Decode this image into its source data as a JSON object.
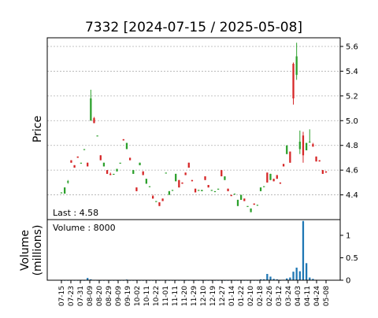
{
  "chart_data": {
    "type": "candlestick",
    "title": "7332   [2024-07-15 / 2025-05-08]",
    "colors": {
      "up": "#2ca02c",
      "down": "#d62728",
      "volume": "#1f77b4",
      "grid": "#b0b0b0"
    },
    "price_panel": {
      "ylabel": "Price",
      "ylim": [
        4.2,
        5.67
      ],
      "yticks": [
        "4.4",
        "4.6",
        "4.8",
        "5.0",
        "5.2",
        "5.4",
        "5.6"
      ],
      "grid": true,
      "annotation": "Last : 4.58"
    },
    "volume_panel": {
      "ylabel": "Volume\n(millions)",
      "ylim": [
        0,
        1.35
      ],
      "yticks": [
        "0",
        "0.5",
        "1"
      ],
      "grid": false,
      "annotation": "Volume : 8000"
    },
    "x_ticks": [
      "07-15",
      "07-23",
      "07-31",
      "08-09",
      "08-20",
      "08-29",
      "09-09",
      "09-19",
      "10-02",
      "10-11",
      "10-22",
      "11-01",
      "11-11",
      "11-20",
      "11-29",
      "12-10",
      "12-19",
      "12-27",
      "01-14",
      "01-22",
      "02-10",
      "02-18",
      "02-26",
      "03-12",
      "03-24",
      "04-03",
      "04-11",
      "04-24",
      "05-08"
    ],
    "candles": [
      [
        4.42,
        4.42,
        4.42,
        4.42
      ],
      [
        4.41,
        4.46,
        4.41,
        4.46
      ],
      [
        4.5,
        4.52,
        4.49,
        4.51
      ],
      [
        4.68,
        4.68,
        4.66,
        4.66
      ],
      [
        4.64,
        4.64,
        4.62,
        4.62
      ],
      [
        4.71,
        4.71,
        4.7,
        4.7
      ],
      [
        4.66,
        4.66,
        4.66,
        4.66
      ],
      [
        4.77,
        4.77,
        4.77,
        4.77
      ],
      [
        4.66,
        4.66,
        4.63,
        4.63
      ],
      [
        5.0,
        5.25,
        5.0,
        5.18
      ],
      [
        5.02,
        5.03,
        4.98,
        4.98
      ],
      [
        4.88,
        4.88,
        4.88,
        4.88
      ],
      [
        4.72,
        4.72,
        4.68,
        4.68
      ],
      [
        4.63,
        4.66,
        4.63,
        4.66
      ],
      [
        4.6,
        4.6,
        4.57,
        4.57
      ],
      [
        4.57,
        4.58,
        4.56,
        4.56
      ],
      [
        4.57,
        4.57,
        4.57,
        4.57
      ],
      [
        4.59,
        4.61,
        4.59,
        4.61
      ],
      [
        4.66,
        4.66,
        4.66,
        4.66
      ],
      [
        4.85,
        4.85,
        4.84,
        4.84
      ],
      [
        4.77,
        4.82,
        4.77,
        4.82
      ],
      [
        4.7,
        4.7,
        4.68,
        4.68
      ],
      [
        4.57,
        4.6,
        4.57,
        4.6
      ],
      [
        4.46,
        4.46,
        4.43,
        4.43
      ],
      [
        4.64,
        4.66,
        4.64,
        4.66
      ],
      [
        4.59,
        4.59,
        4.56,
        4.56
      ],
      [
        4.49,
        4.53,
        4.49,
        4.53
      ],
      [
        4.47,
        4.47,
        4.47,
        4.47
      ],
      [
        4.39,
        4.4,
        4.37,
        4.37
      ],
      [
        4.35,
        4.35,
        4.35,
        4.35
      ],
      [
        4.34,
        4.34,
        4.31,
        4.31
      ],
      [
        4.37,
        4.37,
        4.35,
        4.35
      ],
      [
        4.58,
        4.58,
        4.58,
        4.58
      ],
      [
        4.4,
        4.43,
        4.4,
        4.43
      ],
      [
        4.44,
        4.44,
        4.44,
        4.44
      ],
      [
        4.51,
        4.57,
        4.51,
        4.57
      ],
      [
        4.52,
        4.52,
        4.46,
        4.46
      ],
      [
        4.5,
        4.5,
        4.49,
        4.49
      ],
      [
        4.58,
        4.58,
        4.56,
        4.56
      ],
      [
        4.66,
        4.66,
        4.62,
        4.62
      ],
      [
        4.52,
        4.52,
        4.51,
        4.51
      ],
      [
        4.45,
        4.45,
        4.42,
        4.42
      ],
      [
        4.44,
        4.44,
        4.44,
        4.44
      ],
      [
        4.43,
        4.44,
        4.43,
        4.44
      ],
      [
        4.55,
        4.55,
        4.52,
        4.52
      ],
      [
        4.48,
        4.48,
        4.46,
        4.46
      ],
      [
        4.44,
        4.44,
        4.44,
        4.44
      ],
      [
        4.43,
        4.43,
        4.43,
        4.43
      ],
      [
        4.45,
        4.45,
        4.45,
        4.45
      ],
      [
        4.6,
        4.6,
        4.55,
        4.55
      ],
      [
        4.52,
        4.55,
        4.52,
        4.55
      ],
      [
        4.45,
        4.45,
        4.43,
        4.43
      ],
      [
        4.4,
        4.4,
        4.39,
        4.39
      ],
      [
        4.41,
        4.41,
        4.41,
        4.41
      ],
      [
        4.31,
        4.36,
        4.31,
        4.36
      ],
      [
        4.36,
        4.4,
        4.36,
        4.4
      ],
      [
        4.37,
        4.37,
        4.35,
        4.35
      ],
      [
        4.31,
        4.31,
        4.31,
        4.31
      ],
      [
        4.26,
        4.29,
        4.26,
        4.29
      ],
      [
        4.33,
        4.33,
        4.32,
        4.32
      ],
      [
        4.32,
        4.32,
        4.32,
        4.32
      ],
      [
        4.43,
        4.46,
        4.43,
        4.46
      ],
      [
        4.47,
        4.47,
        4.47,
        4.47
      ],
      [
        4.58,
        4.58,
        4.5,
        4.5
      ],
      [
        4.52,
        4.57,
        4.52,
        4.57
      ],
      [
        4.53,
        4.53,
        4.51,
        4.51
      ],
      [
        4.56,
        4.56,
        4.53,
        4.53
      ],
      [
        4.5,
        4.5,
        4.49,
        4.49
      ],
      [
        4.65,
        4.65,
        4.63,
        4.63
      ],
      [
        4.73,
        4.8,
        4.73,
        4.8
      ],
      [
        4.75,
        4.75,
        4.66,
        4.66
      ],
      [
        5.46,
        5.47,
        5.13,
        5.18
      ],
      [
        5.37,
        5.63,
        5.33,
        5.52
      ],
      [
        4.77,
        4.92,
        4.73,
        4.83
      ],
      [
        4.88,
        4.91,
        4.66,
        4.72
      ],
      [
        4.76,
        4.82,
        4.76,
        4.82
      ],
      [
        4.83,
        4.93,
        4.83,
        4.83
      ],
      [
        4.81,
        4.82,
        4.79,
        4.79
      ],
      [
        4.71,
        4.71,
        4.67,
        4.67
      ],
      [
        4.68,
        4.68,
        4.67,
        4.67
      ],
      [
        4.6,
        4.6,
        4.57,
        4.57
      ],
      [
        4.59,
        4.59,
        4.58,
        4.58
      ]
    ],
    "volume": [
      0.002,
      0.002,
      0.002,
      0.004,
      0.002,
      0.002,
      0.002,
      0.002,
      0.05,
      0.02,
      0.004,
      0.002,
      0.002,
      0.002,
      0.003,
      0.002,
      0.002,
      0.002,
      0.002,
      0.002,
      0.015,
      0.002,
      0.002,
      0.002,
      0.002,
      0.002,
      0.002,
      0.002,
      0.002,
      0.002,
      0.002,
      0.004,
      0.002,
      0.002,
      0.002,
      0.002,
      0.002,
      0.002,
      0.002,
      0.002,
      0.002,
      0.002,
      0.002,
      0.002,
      0.002,
      0.002,
      0.002,
      0.002,
      0.002,
      0.002,
      0.002,
      0.002,
      0.002,
      0.002,
      0.002,
      0.002,
      0.002,
      0.002,
      0.002,
      0.002,
      0.002,
      0.02,
      0.02,
      0.14,
      0.08,
      0.03,
      0.02,
      0.002,
      0.01,
      0.04,
      0.06,
      0.19,
      0.28,
      0.2,
      1.32,
      0.38,
      0.06,
      0.03,
      0.01,
      0.005,
      0.005,
      0.004,
      0.008
    ]
  }
}
